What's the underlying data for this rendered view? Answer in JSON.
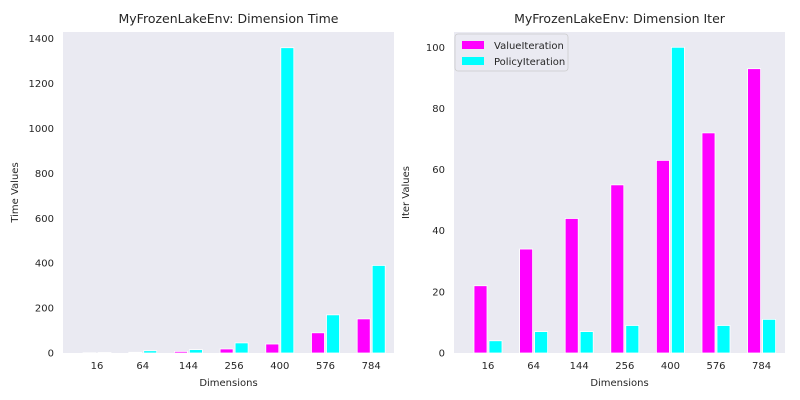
{
  "chart_data": [
    {
      "type": "bar",
      "title": "MyFrozenLakeEnv: Dimension Time",
      "xlabel": "Dimensions",
      "ylabel": "Time Values",
      "categories": [
        "16",
        "64",
        "144",
        "256",
        "400",
        "576",
        "784"
      ],
      "ylim": [
        0,
        1430
      ],
      "yticks": [
        0,
        200,
        400,
        600,
        800,
        1000,
        1200,
        1400
      ],
      "grid": false,
      "legend": null,
      "series": [
        {
          "name": "ValueIteration",
          "color": "#ff00ff",
          "values": [
            1,
            3,
            7,
            18,
            40,
            90,
            152
          ]
        },
        {
          "name": "PolicyIteration",
          "color": "#00ffff",
          "values": [
            2,
            10,
            15,
            45,
            1360,
            170,
            390
          ]
        }
      ]
    },
    {
      "type": "bar",
      "title": "MyFrozenLakeEnv: Dimension Iter",
      "xlabel": "Dimensions",
      "ylabel": "Iter Values",
      "categories": [
        "16",
        "64",
        "144",
        "256",
        "400",
        "576",
        "784"
      ],
      "ylim": [
        0,
        105
      ],
      "yticks": [
        0,
        20,
        40,
        60,
        80,
        100
      ],
      "grid": false,
      "legend": "top-left",
      "series": [
        {
          "name": "ValueIteration",
          "color": "#ff00ff",
          "values": [
            22,
            34,
            44,
            55,
            63,
            72,
            93
          ]
        },
        {
          "name": "PolicyIteration",
          "color": "#00ffff",
          "values": [
            4,
            7,
            7,
            9,
            100,
            9,
            11
          ]
        }
      ]
    }
  ],
  "style": {
    "axes_background": "#eaeaf2",
    "bar_edge": "#ffffff"
  }
}
